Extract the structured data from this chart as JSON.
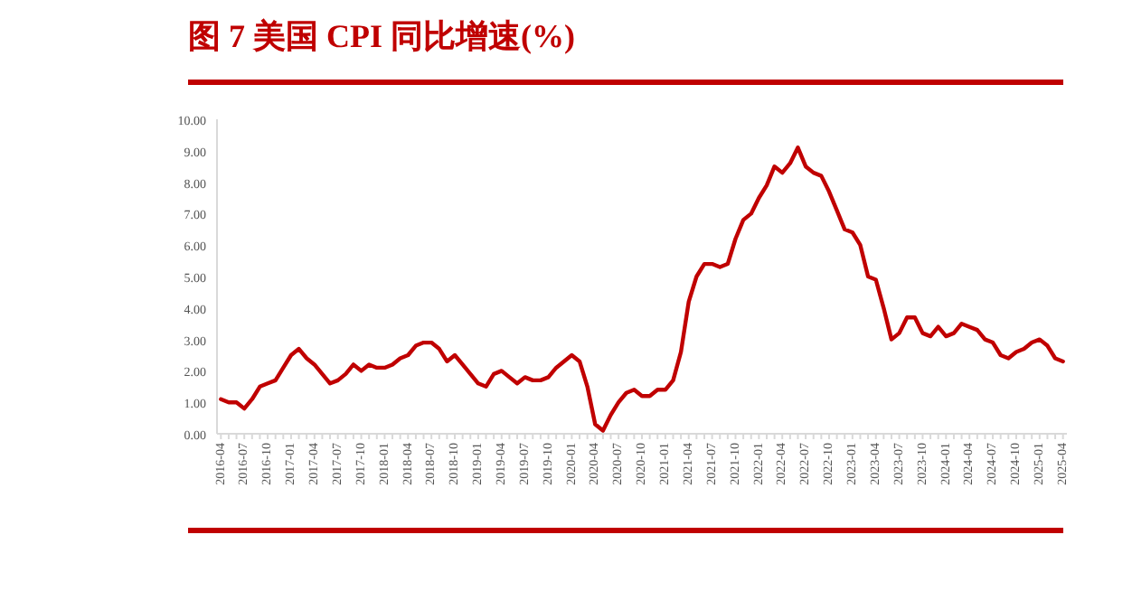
{
  "chart_data": {
    "type": "line",
    "title": "图 7 美国 CPI 同比增速(%)",
    "categories": [
      "2016-04",
      null,
      null,
      "2016-07",
      null,
      null,
      "2016-10",
      null,
      null,
      "2017-01",
      null,
      null,
      "2017-04",
      null,
      null,
      "2017-07",
      null,
      null,
      "2017-10",
      null,
      null,
      "2018-01",
      null,
      null,
      "2018-04",
      null,
      null,
      "2018-07",
      null,
      null,
      "2018-10",
      null,
      null,
      "2019-01",
      null,
      null,
      "2019-04",
      null,
      null,
      "2019-07",
      null,
      null,
      "2019-10",
      null,
      null,
      "2020-01",
      null,
      null,
      "2020-04",
      null,
      null,
      "2020-07",
      null,
      null,
      "2020-10",
      null,
      null,
      "2021-01",
      null,
      null,
      "2021-04",
      null,
      null,
      "2021-07",
      null,
      null,
      "2021-10",
      null,
      null,
      "2022-01",
      null,
      null,
      "2022-04",
      null,
      null,
      "2022-07",
      null,
      null,
      "2022-10",
      null,
      null,
      "2023-01",
      null,
      null,
      "2023-04",
      null,
      null,
      "2023-07",
      null,
      null,
      "2023-10",
      null,
      null,
      "2024-01",
      null,
      null,
      "2024-04",
      null,
      null,
      "2024-07",
      null,
      null,
      "2024-10",
      null,
      null,
      "2025-01",
      null,
      null,
      "2025-04"
    ],
    "series": [
      {
        "color": "#c00000",
        "values": [
          1.1,
          1.0,
          1.0,
          0.8,
          1.1,
          1.5,
          1.6,
          1.7,
          2.1,
          2.5,
          2.7,
          2.4,
          2.2,
          1.9,
          1.6,
          1.7,
          1.9,
          2.2,
          2.0,
          2.2,
          2.1,
          2.1,
          2.2,
          2.4,
          2.5,
          2.8,
          2.9,
          2.9,
          2.7,
          2.3,
          2.5,
          2.2,
          1.9,
          1.6,
          1.5,
          1.9,
          2.0,
          1.8,
          1.6,
          1.8,
          1.7,
          1.7,
          1.8,
          2.1,
          2.3,
          2.5,
          2.3,
          1.5,
          0.3,
          0.1,
          0.6,
          1.0,
          1.3,
          1.4,
          1.2,
          1.2,
          1.4,
          1.4,
          1.7,
          2.6,
          4.2,
          5.0,
          5.4,
          5.4,
          5.3,
          5.4,
          6.2,
          6.8,
          7.0,
          7.5,
          7.9,
          8.5,
          8.3,
          8.6,
          9.1,
          8.5,
          8.3,
          8.2,
          7.7,
          7.1,
          6.5,
          6.4,
          6.0,
          5.0,
          4.9,
          4.0,
          3.0,
          3.2,
          3.7,
          3.7,
          3.2,
          3.1,
          3.4,
          3.1,
          3.2,
          3.5,
          3.4,
          3.3,
          3.0,
          2.9,
          2.5,
          2.4,
          2.6,
          2.7,
          2.9,
          3.0,
          2.8,
          2.4,
          2.3
        ]
      }
    ],
    "ylim": [
      0,
      10
    ],
    "yticks": [
      {
        "value": 0,
        "label": "0.00"
      },
      {
        "value": 1,
        "label": "1.00"
      },
      {
        "value": 2,
        "label": "2.00"
      },
      {
        "value": 3,
        "label": "3.00"
      },
      {
        "value": 4,
        "label": "4.00"
      },
      {
        "value": 5,
        "label": "5.00"
      },
      {
        "value": 6,
        "label": "6.00"
      },
      {
        "value": 7,
        "label": "7.00"
      },
      {
        "value": 8,
        "label": "8.00"
      },
      {
        "value": 9,
        "label": "9.00"
      },
      {
        "value": 10,
        "label": "10.00"
      }
    ],
    "grid": false,
    "marker": "none",
    "line_style": "solid"
  }
}
